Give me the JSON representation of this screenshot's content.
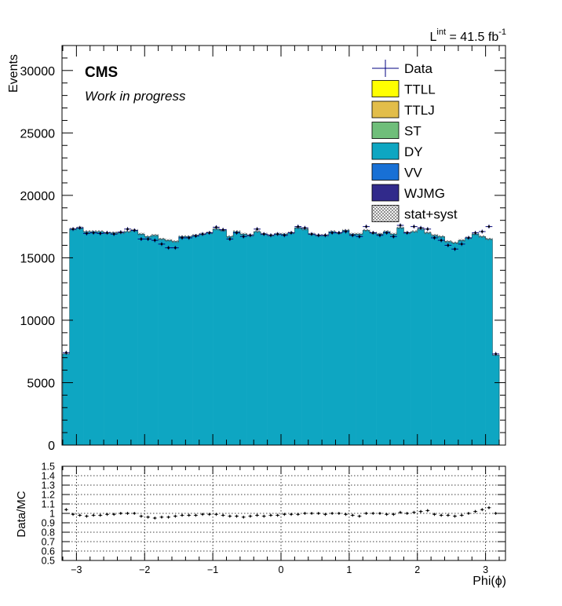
{
  "lumi": {
    "prefix": "L",
    "sup": "int",
    "value": "= 41.5 fb",
    "unit_sup": "-1"
  },
  "cms_label": "CMS",
  "cms_sublabel": "Work in progress",
  "legend": [
    {
      "label": "Data",
      "kind": "data",
      "color": "#000080"
    },
    {
      "label": "TTLL",
      "kind": "fill",
      "color": "#ffff00"
    },
    {
      "label": "TTLJ",
      "kind": "fill",
      "color": "#e2bd4a"
    },
    {
      "label": "ST",
      "kind": "fill",
      "color": "#6fbe7a"
    },
    {
      "label": "DY",
      "kind": "fill",
      "color": "#0ea6c2"
    },
    {
      "label": "VV",
      "kind": "fill",
      "color": "#1870d5"
    },
    {
      "label": "WJMG",
      "kind": "fill",
      "color": "#312a8b"
    },
    {
      "label": "stat+syst",
      "kind": "hatch",
      "color": "#888888"
    }
  ],
  "chart_data": [
    {
      "type": "bar",
      "ylabel": "Events",
      "xlim": [
        -3.2,
        3.2
      ],
      "ylim": [
        0,
        32000
      ],
      "yticks": [
        0,
        5000,
        10000,
        15000,
        20000,
        25000,
        30000
      ],
      "bins": 64,
      "series": [
        {
          "name": "DY",
          "kind": "stack",
          "values": [
            7300,
            17300,
            17400,
            17100,
            17100,
            17100,
            17000,
            17000,
            17000,
            17100,
            17200,
            16900,
            16700,
            16800,
            16500,
            16400,
            16300,
            16700,
            16700,
            16800,
            16900,
            17000,
            17300,
            17200,
            16700,
            17100,
            16900,
            16800,
            17100,
            16900,
            16800,
            16900,
            16900,
            17000,
            17400,
            17300,
            16900,
            16800,
            16800,
            17100,
            17000,
            17200,
            16900,
            16900,
            17200,
            17000,
            16900,
            17100,
            16900,
            17400,
            17000,
            17100,
            17300,
            17000,
            16800,
            16700,
            16300,
            16200,
            16400,
            16600,
            16900,
            16700,
            16500,
            7200
          ]
        },
        {
          "name": "Data",
          "kind": "points",
          "values": [
            7400,
            17300,
            17400,
            16950,
            17000,
            16950,
            17000,
            16900,
            17050,
            17300,
            17200,
            16500,
            16500,
            16400,
            16100,
            15800,
            15800,
            16600,
            16600,
            16750,
            16900,
            17000,
            17450,
            17250,
            16500,
            17000,
            16700,
            16800,
            17300,
            16900,
            16800,
            16900,
            16800,
            17000,
            17500,
            17400,
            16900,
            16800,
            16800,
            17000,
            17000,
            17100,
            16800,
            16700,
            17500,
            17000,
            16800,
            17000,
            16700,
            17600,
            17000,
            17500,
            17400,
            17300,
            16600,
            16400,
            16000,
            15700,
            16100,
            16600,
            17000,
            17100,
            17500,
            7300
          ]
        }
      ]
    },
    {
      "type": "scatter",
      "ylabel": "Data/MC",
      "xlabel": "Phi(ϕ)",
      "xlim": [
        -3.2,
        3.2
      ],
      "ylim": [
        0.5,
        1.5
      ],
      "yticks": [
        "0.5",
        "0.6",
        "0.7",
        "0.8",
        "0.9",
        "1",
        "1.1",
        "1.2",
        "1.3",
        "1.4",
        "1.5"
      ],
      "xticks": [
        "−3",
        "−2",
        "−1",
        "0",
        "1",
        "2",
        "3"
      ],
      "grid": true,
      "series": [
        {
          "name": "Data/MC",
          "values": [
            1.04,
            0.99,
            0.98,
            0.97,
            0.98,
            0.98,
            0.99,
            0.99,
            1.0,
            1.0,
            1.0,
            0.97,
            0.96,
            0.95,
            0.96,
            0.96,
            0.97,
            0.98,
            0.98,
            0.98,
            0.99,
            0.99,
            0.99,
            0.98,
            0.97,
            0.97,
            0.96,
            0.97,
            0.98,
            0.97,
            0.98,
            0.98,
            0.99,
            0.99,
            0.99,
            1.0,
            1.0,
            1.0,
            0.99,
            1.0,
            1.0,
            0.99,
            0.98,
            0.97,
            1.0,
            1.0,
            1.0,
            0.99,
            0.99,
            1.01,
            1.0,
            1.01,
            1.02,
            1.03,
            0.99,
            0.98,
            0.98,
            0.97,
            0.98,
            1.0,
            1.02,
            1.04,
            1.06,
            1.0
          ]
        }
      ]
    }
  ]
}
